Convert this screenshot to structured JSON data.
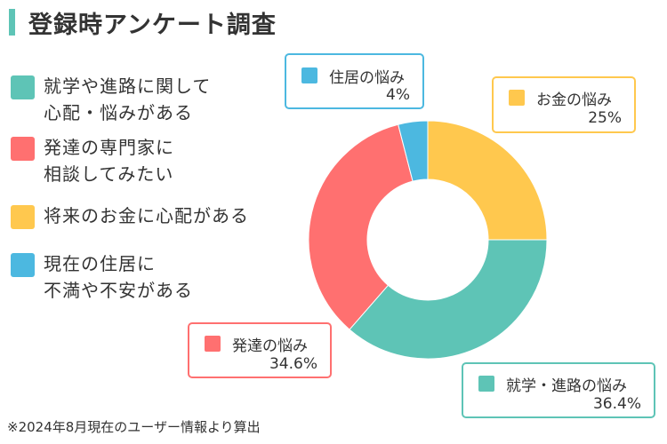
{
  "title": "登録時アンケート調査",
  "footnote": "※2024年8月現在のユーザー情報より算出",
  "legend": [
    {
      "text": "就学や進路に関して\n心配・悩みがある",
      "color": "#5ec4b6"
    },
    {
      "text": "発達の専門家に\n相談してみたい",
      "color": "#ff7070"
    },
    {
      "text": "将来のお金に心配がある",
      "color": "#ffc84e"
    },
    {
      "text": "現在の住居に\n不満や不安がある",
      "color": "#4cb8e0"
    }
  ],
  "chart_data": {
    "type": "pie",
    "donut": true,
    "title": "",
    "series": [
      {
        "name": "お金の悩み",
        "value": 25,
        "label": "25%",
        "color": "#ffc84e"
      },
      {
        "name": "就学・進路の悩み",
        "value": 36.4,
        "label": "36.4%",
        "color": "#5ec4b6"
      },
      {
        "name": "発達の悩み",
        "value": 34.6,
        "label": "34.6%",
        "color": "#ff7070"
      },
      {
        "name": "住居の悩み",
        "value": 4,
        "label": "4%",
        "color": "#4cb8e0"
      }
    ]
  }
}
